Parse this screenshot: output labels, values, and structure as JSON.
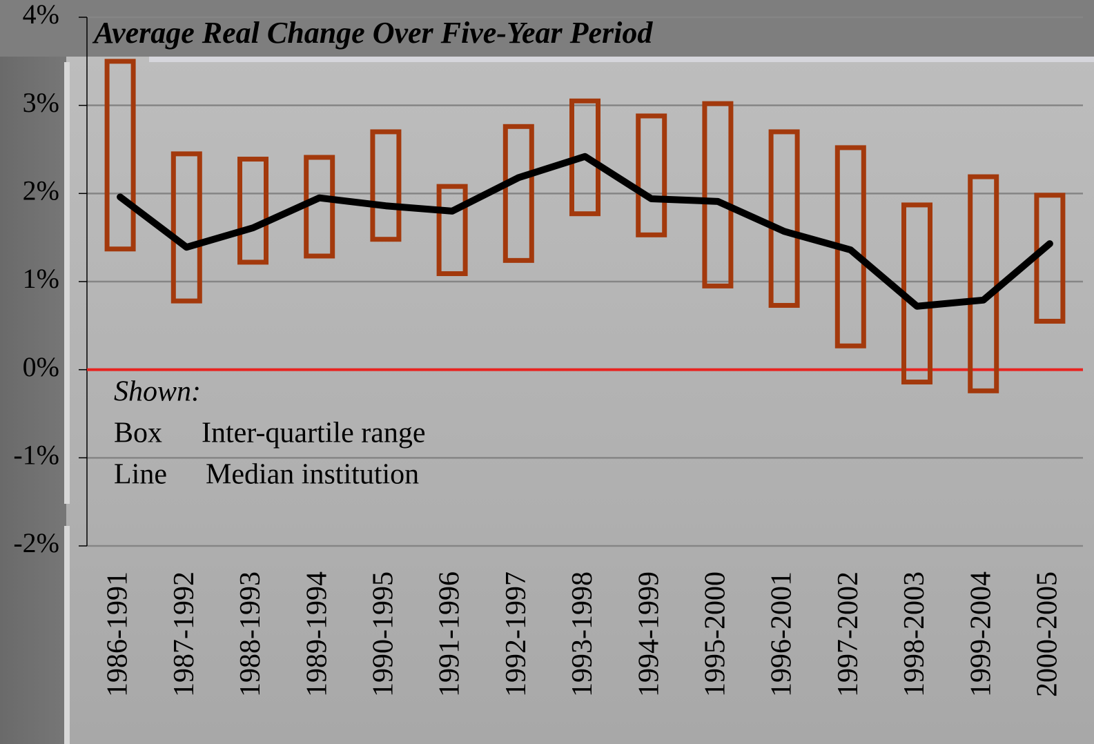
{
  "chart_data": {
    "type": "box",
    "title": "Average Real Change Over Five-Year Period",
    "categories": [
      "1986-1991",
      "1987-1992",
      "1988-1993",
      "1989-1994",
      "1990-1995",
      "1991-1996",
      "1992-1997",
      "1993-1998",
      "1994-1999",
      "1995-2000",
      "1996-2001",
      "1997-2002",
      "1998-2003",
      "1999-2004",
      "2000-2005"
    ],
    "boxes": {
      "color": "#a3390c",
      "q3": [
        3.5,
        2.45,
        2.39,
        2.41,
        2.7,
        2.08,
        2.76,
        3.05,
        2.88,
        3.02,
        2.7,
        2.52,
        1.87,
        2.19,
        1.98
      ],
      "q1": [
        1.37,
        0.78,
        1.22,
        1.29,
        1.48,
        1.09,
        1.24,
        1.77,
        1.53,
        0.95,
        0.73,
        0.27,
        -0.14,
        -0.24,
        0.55
      ]
    },
    "median": {
      "color": "#000000",
      "values": [
        1.96,
        1.39,
        1.61,
        1.95,
        1.86,
        1.8,
        2.18,
        2.42,
        1.94,
        1.91,
        1.57,
        1.36,
        0.72,
        0.79,
        1.43
      ]
    },
    "ylim": [
      -2,
      4
    ],
    "yticks": [
      {
        "value": -2,
        "label": "-2%"
      },
      {
        "value": -1,
        "label": "-1%"
      },
      {
        "value": 0,
        "label": "0%"
      },
      {
        "value": 1,
        "label": "1%"
      },
      {
        "value": 2,
        "label": "2%"
      },
      {
        "value": 3,
        "label": "3%"
      },
      {
        "value": 4,
        "label": "4%"
      }
    ],
    "grid": true,
    "reference_line": {
      "value": 0,
      "color": "#e8231f"
    },
    "legend": {
      "title": "Shown:",
      "items": [
        {
          "label": "Box",
          "description": "Inter-quartile range"
        },
        {
          "label": "Line",
          "description": "Median institution"
        }
      ]
    }
  }
}
